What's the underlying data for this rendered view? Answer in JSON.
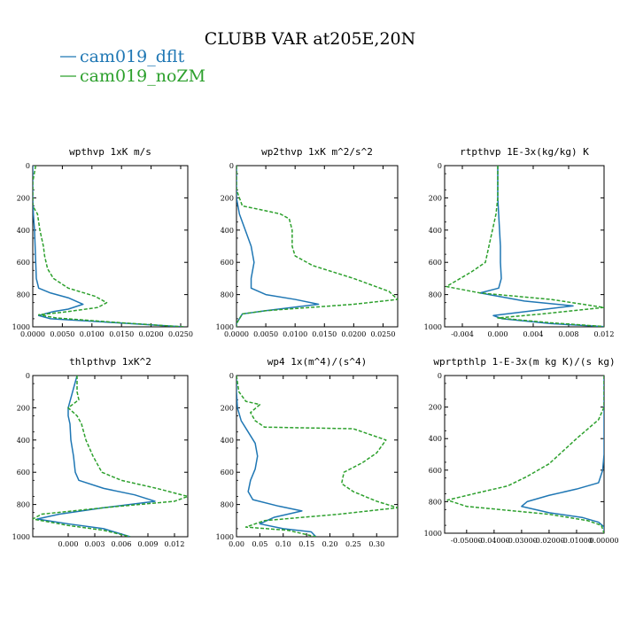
{
  "figure": {
    "title": "CLUBB VAR at205E,20N",
    "legend": [
      {
        "label": "cam019_dflt",
        "color": "#1f77b4"
      },
      {
        "label": "cam019_noZM",
        "color": "#2ca02c"
      }
    ]
  },
  "chart_data": [
    {
      "type": "line",
      "title": "wpthvp  1xK m/s",
      "xlabel": "",
      "ylabel": "",
      "xlim": [
        0,
        0.0262
      ],
      "ylim": [
        1000,
        0
      ],
      "x_ticks": [
        0.0,
        0.005,
        0.01,
        0.015,
        0.02,
        0.025
      ],
      "x_tick_labels": [
        "0.0000",
        "0.0050",
        "0.0100",
        "0.0150",
        "0.0200",
        "0.0250"
      ],
      "y_ticks": [
        0,
        200,
        400,
        600,
        800,
        1000
      ],
      "series": [
        {
          "name": "cam019_dflt",
          "color": "#1f77b4",
          "style": "solid",
          "points": [
            [
              0,
              0
            ],
            [
              0,
              200
            ],
            [
              0.0001,
              300
            ],
            [
              0.0003,
              400
            ],
            [
              0.0004,
              500
            ],
            [
              0.0005,
              600
            ],
            [
              0.0006,
              700
            ],
            [
              0.001,
              760
            ],
            [
              0.003,
              790
            ],
            [
              0.006,
              820
            ],
            [
              0.0085,
              860
            ],
            [
              0.006,
              890
            ],
            [
              0.0035,
              905
            ],
            [
              0.001,
              930
            ],
            [
              0.003,
              950
            ],
            [
              0.012,
              970
            ],
            [
              0.0255,
              1000
            ]
          ]
        },
        {
          "name": "cam019_noZM",
          "color": "#2ca02c",
          "style": "dashed",
          "points": [
            [
              0.0005,
              0
            ],
            [
              0,
              100
            ],
            [
              0,
              250
            ],
            [
              0.0008,
              300
            ],
            [
              0.0012,
              400
            ],
            [
              0.0018,
              500
            ],
            [
              0.002,
              560
            ],
            [
              0.0025,
              640
            ],
            [
              0.0035,
              700
            ],
            [
              0.006,
              760
            ],
            [
              0.0105,
              810
            ],
            [
              0.0125,
              850
            ],
            [
              0.011,
              880
            ],
            [
              0.005,
              910
            ],
            [
              0.001,
              925
            ],
            [
              0.004,
              945
            ],
            [
              0.015,
              975
            ],
            [
              0.0255,
              1000
            ]
          ]
        }
      ]
    },
    {
      "type": "line",
      "title": "wp2thvp  1xK m^2/s^2",
      "xlabel": "",
      "ylabel": "",
      "xlim": [
        0,
        0.0275
      ],
      "ylim": [
        1000,
        0
      ],
      "x_ticks": [
        0.0,
        0.005,
        0.01,
        0.015,
        0.02,
        0.025
      ],
      "x_tick_labels": [
        "0.0000",
        "0.0050",
        "0.0100",
        "0.0150",
        "0.0200",
        "0.0250"
      ],
      "y_ticks": [
        0,
        200,
        400,
        600,
        800,
        1000
      ],
      "series": [
        {
          "name": "cam019_dflt",
          "color": "#1f77b4",
          "style": "solid",
          "points": [
            [
              0,
              0
            ],
            [
              0,
              200
            ],
            [
              0.0005,
              300
            ],
            [
              0.0015,
              400
            ],
            [
              0.0025,
              500
            ],
            [
              0.003,
              600
            ],
            [
              0.0025,
              700
            ],
            [
              0.0025,
              760
            ],
            [
              0.005,
              800
            ],
            [
              0.01,
              830
            ],
            [
              0.014,
              860
            ],
            [
              0.005,
              900
            ],
            [
              0.001,
              920
            ],
            [
              0.0005,
              950
            ],
            [
              0,
              980
            ],
            [
              0,
              1000
            ]
          ]
        },
        {
          "name": "cam019_noZM",
          "color": "#2ca02c",
          "style": "dashed",
          "points": [
            [
              0,
              0
            ],
            [
              0,
              150
            ],
            [
              0.001,
              250
            ],
            [
              0.005,
              280
            ],
            [
              0.0075,
              300
            ],
            [
              0.009,
              330
            ],
            [
              0.0095,
              400
            ],
            [
              0.0095,
              500
            ],
            [
              0.01,
              560
            ],
            [
              0.013,
              620
            ],
            [
              0.02,
              700
            ],
            [
              0.026,
              780
            ],
            [
              0.0275,
              830
            ],
            [
              0.02,
              860
            ],
            [
              0.005,
              900
            ],
            [
              0.001,
              920
            ],
            [
              0.0005,
              950
            ],
            [
              0,
              980
            ],
            [
              0,
              1000
            ]
          ]
        }
      ]
    },
    {
      "type": "line",
      "title": "rtpthvp  1E-3x(kg/kg) K",
      "xlabel": "",
      "ylabel": "",
      "xlim": [
        -0.006,
        0.012
      ],
      "ylim": [
        1000,
        0
      ],
      "x_ticks": [
        -0.004,
        0.0,
        0.004,
        0.008,
        0.012
      ],
      "x_tick_labels": [
        "-0.004",
        "0.000",
        "0.004",
        "0.008",
        "0.012"
      ],
      "y_ticks": [
        0,
        200,
        400,
        600,
        800,
        1000
      ],
      "series": [
        {
          "name": "cam019_dflt",
          "color": "#1f77b4",
          "style": "solid",
          "points": [
            [
              0,
              0
            ],
            [
              0,
              100
            ],
            [
              0,
              200
            ],
            [
              0.0001,
              300
            ],
            [
              0.0002,
              400
            ],
            [
              0.0003,
              500
            ],
            [
              0.0003,
              600
            ],
            [
              0.0004,
              700
            ],
            [
              0.0001,
              760
            ],
            [
              -0.002,
              790
            ],
            [
              0.003,
              840
            ],
            [
              0.0085,
              870
            ],
            [
              0.004,
              900
            ],
            [
              -0.0005,
              930
            ],
            [
              0.0005,
              950
            ],
            [
              0.006,
              980
            ],
            [
              0.0125,
              1000
            ]
          ]
        },
        {
          "name": "cam019_noZM",
          "color": "#2ca02c",
          "style": "dashed",
          "points": [
            [
              0,
              0
            ],
            [
              0,
              100
            ],
            [
              0,
              200
            ],
            [
              -0.0002,
              300
            ],
            [
              -0.0006,
              400
            ],
            [
              -0.001,
              500
            ],
            [
              -0.0014,
              600
            ],
            [
              -0.003,
              660
            ],
            [
              -0.0058,
              750
            ],
            [
              -0.002,
              790
            ],
            [
              0.006,
              830
            ],
            [
              0.012,
              880
            ],
            [
              0.005,
              920
            ],
            [
              0,
              945
            ],
            [
              0.006,
              975
            ],
            [
              0.0125,
              1000
            ]
          ]
        }
      ]
    },
    {
      "type": "line",
      "title": "thlpthvp  1xK^2",
      "xlabel": "",
      "ylabel": "",
      "xlim": [
        -0.004,
        0.0135
      ],
      "ylim": [
        1000,
        0
      ],
      "x_ticks": [
        0.0,
        0.003,
        0.006,
        0.009,
        0.012
      ],
      "x_tick_labels": [
        "0.000",
        "0.003",
        "0.006",
        "0.009",
        "0.012"
      ],
      "y_ticks": [
        0,
        200,
        400,
        600,
        800,
        1000
      ],
      "series": [
        {
          "name": "cam019_dflt",
          "color": "#1f77b4",
          "style": "solid",
          "points": [
            [
              0.001,
              0
            ],
            [
              0.0005,
              100
            ],
            [
              0,
              200
            ],
            [
              0,
              250
            ],
            [
              0.0002,
              300
            ],
            [
              0.0003,
              400
            ],
            [
              0.0006,
              500
            ],
            [
              0.0008,
              600
            ],
            [
              0.0012,
              650
            ],
            [
              0.004,
              700
            ],
            [
              0.0075,
              740
            ],
            [
              0.0098,
              780
            ],
            [
              0.004,
              820
            ],
            [
              -0.001,
              860
            ],
            [
              -0.0035,
              890
            ],
            [
              0,
              920
            ],
            [
              0.004,
              950
            ],
            [
              0.007,
              1000
            ]
          ]
        },
        {
          "name": "cam019_noZM",
          "color": "#2ca02c",
          "style": "dashed",
          "points": [
            [
              0.001,
              0
            ],
            [
              0.001,
              100
            ],
            [
              0.0012,
              150
            ],
            [
              0,
              200
            ],
            [
              0.001,
              250
            ],
            [
              0.0015,
              300
            ],
            [
              0.002,
              400
            ],
            [
              0.0028,
              500
            ],
            [
              0.0038,
              600
            ],
            [
              0.006,
              650
            ],
            [
              0.01,
              700
            ],
            [
              0.0135,
              750
            ],
            [
              0.012,
              780
            ],
            [
              0.004,
              820
            ],
            [
              -0.003,
              860
            ],
            [
              -0.004,
              890
            ],
            [
              0,
              930
            ],
            [
              0.004,
              960
            ],
            [
              0.007,
              1000
            ]
          ]
        }
      ]
    },
    {
      "type": "line",
      "title": "wp4  1x(m^4)/(s^4)",
      "xlabel": "",
      "ylabel": "",
      "xlim": [
        0,
        0.345
      ],
      "ylim": [
        1000,
        0
      ],
      "x_ticks": [
        0.0,
        0.05,
        0.1,
        0.15,
        0.2,
        0.25,
        0.3
      ],
      "x_tick_labels": [
        "0.00",
        "0.05",
        "0.10",
        "0.15",
        "0.20",
        "0.25",
        "0.30"
      ],
      "y_ticks": [
        0,
        200,
        400,
        600,
        800,
        1000
      ],
      "series": [
        {
          "name": "cam019_dflt",
          "color": "#1f77b4",
          "style": "solid",
          "points": [
            [
              0,
              0
            ],
            [
              0,
              100
            ],
            [
              0.002,
              200
            ],
            [
              0.01,
              280
            ],
            [
              0.025,
              350
            ],
            [
              0.04,
              420
            ],
            [
              0.045,
              500
            ],
            [
              0.04,
              580
            ],
            [
              0.03,
              650
            ],
            [
              0.025,
              720
            ],
            [
              0.035,
              770
            ],
            [
              0.09,
              810
            ],
            [
              0.14,
              840
            ],
            [
              0.08,
              880
            ],
            [
              0.05,
              920
            ],
            [
              0.1,
              950
            ],
            [
              0.16,
              970
            ],
            [
              0.17,
              1000
            ]
          ]
        },
        {
          "name": "cam019_noZM",
          "color": "#2ca02c",
          "style": "dashed",
          "points": [
            [
              0,
              0
            ],
            [
              0.005,
              100
            ],
            [
              0.02,
              160
            ],
            [
              0.05,
              180
            ],
            [
              0.03,
              230
            ],
            [
              0.04,
              280
            ],
            [
              0.06,
              320
            ],
            [
              0.25,
              330
            ],
            [
              0.32,
              400
            ],
            [
              0.3,
              480
            ],
            [
              0.27,
              540
            ],
            [
              0.23,
              600
            ],
            [
              0.225,
              670
            ],
            [
              0.25,
              720
            ],
            [
              0.3,
              780
            ],
            [
              0.345,
              820
            ],
            [
              0.22,
              860
            ],
            [
              0.06,
              900
            ],
            [
              0.02,
              940
            ],
            [
              0.11,
              960
            ],
            [
              0.17,
              1000
            ]
          ]
        }
      ]
    },
    {
      "type": "line",
      "title": "wprtpthlp  1-E-3x(m kg K)/(s kg)",
      "xlabel": "",
      "ylabel": "",
      "xlim": [
        -0.058,
        0.0
      ],
      "ylim": [
        1000,
        0
      ],
      "x_ticks": [
        -0.05,
        -0.04,
        -0.03,
        -0.02,
        -0.01,
        0.0
      ],
      "x_tick_labels": [
        "-0.05000",
        "-0.04000",
        "-0.03000",
        "-0.02000",
        "-0.01000",
        "0.00000"
      ],
      "y_ticks": [
        0,
        200,
        400,
        600,
        800,
        1000
      ],
      "series": [
        {
          "name": "cam019_dflt",
          "color": "#1f77b4",
          "style": "solid",
          "points": [
            [
              0,
              0
            ],
            [
              0,
              100
            ],
            [
              0,
              200
            ],
            [
              0,
              300
            ],
            [
              0,
              400
            ],
            [
              0,
              500
            ],
            [
              -0.0005,
              600
            ],
            [
              -0.002,
              680
            ],
            [
              -0.01,
              720
            ],
            [
              -0.02,
              760
            ],
            [
              -0.028,
              800
            ],
            [
              -0.03,
              830
            ],
            [
              -0.02,
              870
            ],
            [
              -0.008,
              900
            ],
            [
              -0.002,
              930
            ],
            [
              0,
              960
            ],
            [
              0,
              1000
            ]
          ]
        },
        {
          "name": "cam019_noZM",
          "color": "#2ca02c",
          "style": "dashed",
          "points": [
            [
              0,
              0
            ],
            [
              0,
              100
            ],
            [
              0,
              200
            ],
            [
              -0.002,
              280
            ],
            [
              -0.006,
              340
            ],
            [
              -0.01,
              400
            ],
            [
              -0.015,
              480
            ],
            [
              -0.02,
              560
            ],
            [
              -0.028,
              640
            ],
            [
              -0.035,
              700
            ],
            [
              -0.045,
              740
            ],
            [
              -0.057,
              790
            ],
            [
              -0.05,
              830
            ],
            [
              -0.02,
              880
            ],
            [
              -0.006,
              920
            ],
            [
              -0.001,
              950
            ],
            [
              0,
              1000
            ]
          ]
        }
      ]
    }
  ]
}
